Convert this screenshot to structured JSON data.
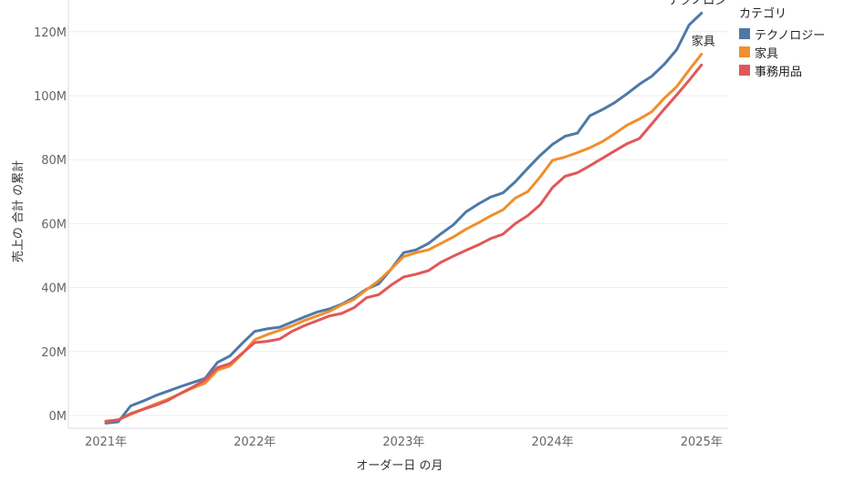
{
  "chart_data": {
    "type": "line",
    "xlabel": "オーダー日 の月",
    "ylabel": "売上の 合計 の累計",
    "x_ticks": [
      "2021年",
      "2022年",
      "2023年",
      "2024年",
      "2025年"
    ],
    "y_ticks": [
      "0M",
      "20M",
      "40M",
      "60M",
      "80M",
      "100M",
      "120M"
    ],
    "ylim": [
      0,
      128000000
    ],
    "x_start": "2021年1月",
    "grid": "horizontal",
    "legend_title": "カテゴリ",
    "legend_position": "top-right",
    "series": [
      {
        "name": "テクノロジー",
        "color": "#4e79a7",
        "end_label": "テクノロジー",
        "values": [
          -2.4,
          -2.0,
          3.0,
          4.5,
          6.2,
          7.6,
          9.0,
          10.3,
          11.6,
          16.6,
          18.6,
          22.6,
          26.3,
          27.1,
          27.6,
          29.2,
          30.8,
          32.3,
          33.3,
          34.8,
          36.9,
          39.5,
          41.2,
          45.8,
          50.9,
          51.8,
          53.8,
          56.8,
          59.6,
          63.6,
          66.1,
          68.3,
          69.6,
          73.1,
          77.3,
          81.3,
          84.8,
          87.3,
          88.3,
          93.7,
          95.6,
          97.8,
          100.6,
          103.6,
          106.1,
          109.8,
          114.4,
          122.1,
          125.8
        ]
      },
      {
        "name": "家具",
        "color": "#f28e2b",
        "end_label": "家具",
        "values": [
          -1.9,
          -1.3,
          0.3,
          2.0,
          3.6,
          5.1,
          6.8,
          8.6,
          10.1,
          14.2,
          15.5,
          19.3,
          23.7,
          25.3,
          26.6,
          28.0,
          29.7,
          31.1,
          32.5,
          34.6,
          36.3,
          39.3,
          42.2,
          45.8,
          49.7,
          50.9,
          51.8,
          53.8,
          55.8,
          58.2,
          60.2,
          62.4,
          64.3,
          68.0,
          70.0,
          74.6,
          79.8,
          80.8,
          82.2,
          83.7,
          85.6,
          88.1,
          90.8,
          92.7,
          95.0,
          99.2,
          102.8,
          108.0,
          113.0
        ]
      },
      {
        "name": "事務用品",
        "color": "#e15759",
        "end_label": "",
        "values": [
          -1.8,
          -1.4,
          0.6,
          1.9,
          3.2,
          4.7,
          6.9,
          8.9,
          11.1,
          15.0,
          16.2,
          19.5,
          22.8,
          23.2,
          23.9,
          26.3,
          28.1,
          29.6,
          31.1,
          31.9,
          33.7,
          36.8,
          37.8,
          40.8,
          43.3,
          44.2,
          45.3,
          47.9,
          49.8,
          51.6,
          53.3,
          55.3,
          56.7,
          60.0,
          62.5,
          65.9,
          71.3,
          74.8,
          75.9,
          78.1,
          80.4,
          82.7,
          85.0,
          86.6,
          91.2,
          95.8,
          100.2,
          104.8,
          109.6
        ]
      }
    ]
  }
}
